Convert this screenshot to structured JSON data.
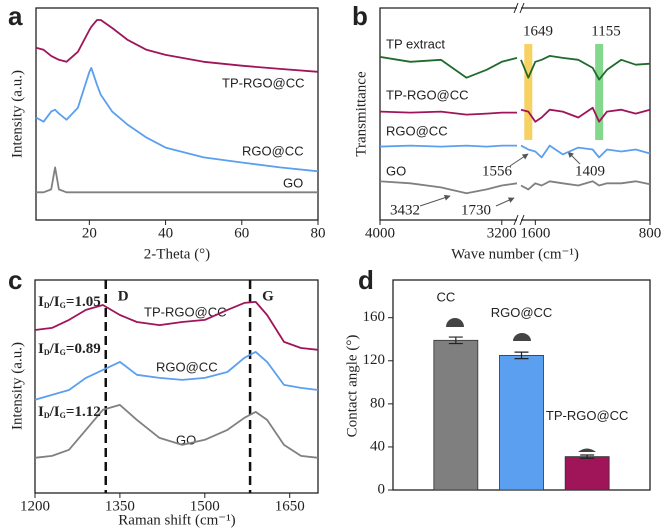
{
  "chart_data": [
    {
      "type": "line",
      "panel": "a",
      "xlabel": "2-Theta (°)",
      "ylabel": "Intensity (a.u.)",
      "x": [
        6,
        8,
        10,
        11,
        12,
        14,
        17,
        20,
        20.5,
        22,
        23,
        26,
        30,
        35,
        40,
        50,
        60,
        70,
        80
      ],
      "series": [
        {
          "name": "TP-RGO@CC",
          "color": "#a0145a",
          "values": [
            7.97,
            7.87,
            7.56,
            7.46,
            7.36,
            7.26,
            7.77,
            8.88,
            9.04,
            9.39,
            9.39,
            8.98,
            8.38,
            7.87,
            7.61,
            7.26,
            7.06,
            6.9,
            6.75
          ]
        },
        {
          "name": "RGO@CC",
          "color": "#5b9ff0",
          "values": [
            4.42,
            4.21,
            4.72,
            4.82,
            4.62,
            4.31,
            4.92,
            6.75,
            6.95,
            6.09,
            5.58,
            4.72,
            4.06,
            3.4,
            2.89,
            2.39,
            2.13,
            1.88,
            1.68
          ]
        },
        {
          "name": "GO",
          "color": "#808080",
          "values": [
            0.61,
            0.61,
            0.76,
            1.88,
            0.76,
            0.61,
            0.61,
            0.61,
            0.61,
            0.61,
            0.61,
            0.61,
            0.61,
            0.61,
            0.61,
            0.61,
            0.61,
            0.61,
            0.61
          ]
        }
      ],
      "xlim": [
        6,
        80
      ],
      "xticks": [
        20,
        40,
        60,
        80
      ],
      "ylim": [
        -0.8,
        10
      ]
    },
    {
      "type": "line",
      "panel": "b",
      "xlabel": "Wave number (cm⁻¹)",
      "ylabel": "Transmittance",
      "x": [
        4000,
        3800,
        3600,
        3432,
        3300,
        3200,
        3100,
        2400,
        1700,
        1649,
        1600,
        1556,
        1500,
        1409,
        1300,
        1200,
        1155,
        1100,
        1000,
        900,
        800
      ],
      "series": [
        {
          "name": "TP extract",
          "color": "#1f6b2c",
          "values": [
            7.51,
            7.26,
            7.36,
            6.45,
            6.85,
            7.26,
            7.46,
            null,
            7.36,
            6.45,
            7.26,
            7.36,
            7.56,
            7.46,
            7.36,
            6.95,
            6.35,
            6.85,
            7.36,
            7.11,
            7.16
          ]
        },
        {
          "name": "TP-RGO@CC",
          "color": "#a0145a",
          "values": [
            4.72,
            4.67,
            4.72,
            4.57,
            4.62,
            4.67,
            4.67,
            null,
            4.82,
            4.72,
            4.21,
            4.42,
            4.82,
            4.72,
            4.42,
            4.92,
            4.21,
            4.72,
            4.82,
            4.62,
            4.82
          ]
        },
        {
          "name": "RGO@CC",
          "color": "#5b9ff0",
          "values": [
            2.94,
            2.99,
            2.94,
            2.99,
            2.94,
            2.99,
            2.99,
            null,
            2.99,
            2.79,
            2.69,
            2.39,
            2.99,
            2.54,
            2.89,
            2.79,
            2.39,
            2.79,
            2.69,
            2.79,
            2.59
          ]
        },
        {
          "name": "GO",
          "color": "#808080",
          "values": [
            1.17,
            1.07,
            0.86,
            0.56,
            0.76,
            0.96,
            1.07,
            null,
            0.96,
            0.76,
            1.07,
            0.96,
            1.17,
            1.07,
            0.96,
            1.17,
            0.96,
            1.07,
            1.07,
            1.17,
            1.02
          ]
        }
      ],
      "xlim": [
        4000,
        800
      ],
      "xbreak": [
        3100,
        1700
      ],
      "xticks": [
        4000,
        3200,
        1600,
        800
      ],
      "ylim": [
        -0.8,
        10
      ],
      "annotations": [
        1649,
        1155,
        1556,
        1409,
        3432,
        1730
      ],
      "band_colors": [
        "#f7c948",
        "#6fd17a"
      ]
    },
    {
      "type": "line",
      "panel": "c",
      "xlabel": "Raman shift (cm⁻¹)",
      "ylabel": "Intensity (a.u.)",
      "x": [
        1200,
        1230,
        1260,
        1290,
        1320,
        1350,
        1380,
        1420,
        1460,
        1500,
        1540,
        1570,
        1590,
        1610,
        1640,
        1670,
        1700
      ],
      "series": [
        {
          "name": "TP-RGO@CC",
          "color": "#a0145a",
          "values": [
            7.56,
            7.66,
            8.05,
            8.54,
            8.78,
            8.29,
            7.95,
            7.8,
            7.95,
            8.05,
            8.54,
            8.88,
            8.93,
            8.29,
            6.98,
            6.68,
            6.59
          ]
        },
        {
          "name": "RGO@CC",
          "color": "#5b9ff0",
          "values": [
            4.15,
            4.39,
            4.63,
            5.22,
            5.61,
            6.0,
            5.37,
            5.22,
            5.12,
            5.22,
            5.51,
            6.2,
            6.49,
            6.0,
            4.88,
            4.73,
            4.63
          ]
        },
        {
          "name": "GO",
          "color": "#808080",
          "values": [
            1.32,
            1.41,
            1.71,
            2.68,
            3.66,
            3.9,
            3.17,
            2.29,
            1.95,
            2.2,
            2.68,
            3.27,
            3.56,
            3.17,
            1.95,
            1.41,
            1.32
          ]
        }
      ],
      "xlim": [
        1200,
        1700
      ],
      "xticks": [
        1200,
        1350,
        1500,
        1650
      ],
      "ylim": [
        -0.4,
        10
      ],
      "peak_lines": [
        {
          "label": "D",
          "x": 1325
        },
        {
          "label": "G",
          "x": 1580
        }
      ],
      "ratio_symbol": {
        "i1": "I",
        "d": "D",
        "i2": "/I",
        "g": "G",
        "eq": "="
      },
      "ratios": [
        1.05,
        0.89,
        1.12
      ]
    },
    {
      "type": "bar",
      "panel": "d",
      "ylabel": "Contact angle (°)",
      "categories": [
        "CC",
        "RGO@CC",
        "TP-RGO@CC"
      ],
      "values": [
        139,
        125,
        31
      ],
      "errors": [
        3,
        3,
        1.5
      ],
      "colors": [
        "#7f7f7f",
        "#5b9ff0",
        "#a0145a"
      ],
      "ylim": [
        0,
        195
      ],
      "yticks": [
        0,
        40,
        80,
        120,
        160
      ]
    }
  ]
}
